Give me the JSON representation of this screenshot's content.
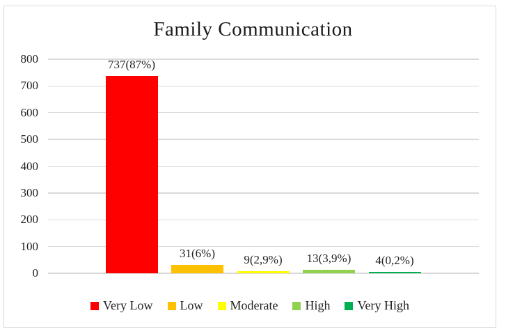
{
  "chart_data": {
    "type": "bar",
    "title": "Family Communication",
    "categories": [
      "Very Low",
      "Low",
      "Moderate",
      "High",
      "Very High"
    ],
    "values": [
      737,
      31,
      9,
      13,
      4
    ],
    "bar_labels": [
      "737(87%)",
      "31(6%)",
      "9(2,9%)",
      "13(3,9%)",
      "4(0,2%)"
    ],
    "bar_colors": [
      "#FF0000",
      "#FFC000",
      "#FFFF00",
      "#92D050",
      "#00B050"
    ],
    "legend": [
      {
        "label": "Very Low",
        "color": "#FF0000"
      },
      {
        "label": "Low",
        "color": "#FFC000"
      },
      {
        "label": "Moderate",
        "color": "#FFFF00"
      },
      {
        "label": "High",
        "color": "#92D050"
      },
      {
        "label": "Very High",
        "color": "#00B050"
      }
    ],
    "legend_position": "bottom",
    "ylim": [
      0,
      800
    ],
    "yticks": [
      0,
      100,
      200,
      300,
      400,
      500,
      600,
      700,
      800
    ],
    "xlabel": "",
    "ylabel": "",
    "grid": "horizontal",
    "grid_color": "#D9D9D9",
    "frame_border_color": "#D8D8D8",
    "background": "#FFFFFF",
    "text_color": "#1F1F1F"
  }
}
